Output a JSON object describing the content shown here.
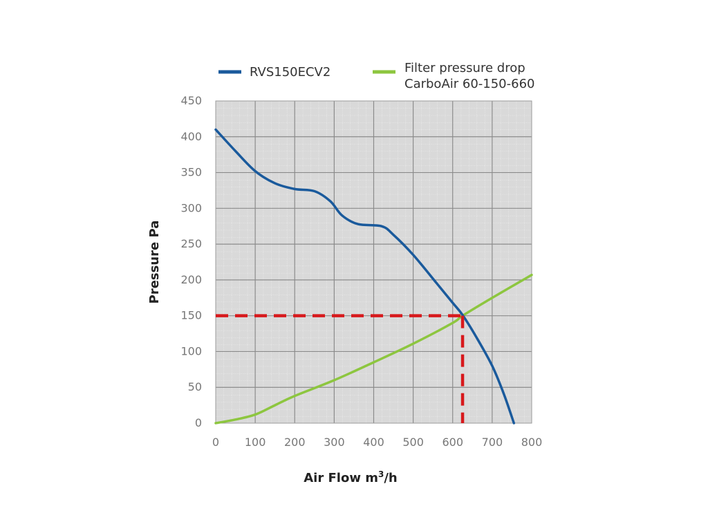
{
  "chart_data": {
    "type": "line",
    "xlabel": "Air Flow m",
    "xlabel_sup": "3",
    "xlabel_tail": "/h",
    "ylabel": "Pressure Pa",
    "xlim": [
      0,
      800
    ],
    "ylim": [
      0,
      450
    ],
    "x_ticks": [
      "0",
      "100",
      "200",
      "300",
      "400",
      "500",
      "600",
      "700",
      "800"
    ],
    "y_ticks": [
      "0",
      "50",
      "100",
      "150",
      "200",
      "250",
      "300",
      "350",
      "400",
      "450"
    ],
    "grid": true,
    "legend_position": "top",
    "series": [
      {
        "name": "RVS150ECV2",
        "color": "#1a5a9c",
        "x": [
          0,
          50,
          100,
          150,
          200,
          250,
          290,
          320,
          360,
          420,
          450,
          500,
          560,
          600,
          625,
          660,
          700,
          730,
          755
        ],
        "y": [
          410,
          380,
          352,
          335,
          327,
          324,
          310,
          290,
          278,
          275,
          263,
          235,
          195,
          168,
          151,
          120,
          80,
          40,
          0
        ]
      },
      {
        "name": "Filter pressure drop",
        "name_line2": "CarboAir 60-150-660",
        "color": "#8dc63f",
        "x": [
          0,
          50,
          100,
          150,
          200,
          300,
          400,
          500,
          600,
          625,
          700,
          800
        ],
        "y": [
          0,
          5,
          12,
          25,
          38,
          60,
          85,
          111,
          140,
          150,
          175,
          207
        ]
      }
    ],
    "annotations": {
      "operating_point": {
        "x": 625,
        "y": 150,
        "color": "#d7191c",
        "style": "dashed"
      }
    }
  }
}
